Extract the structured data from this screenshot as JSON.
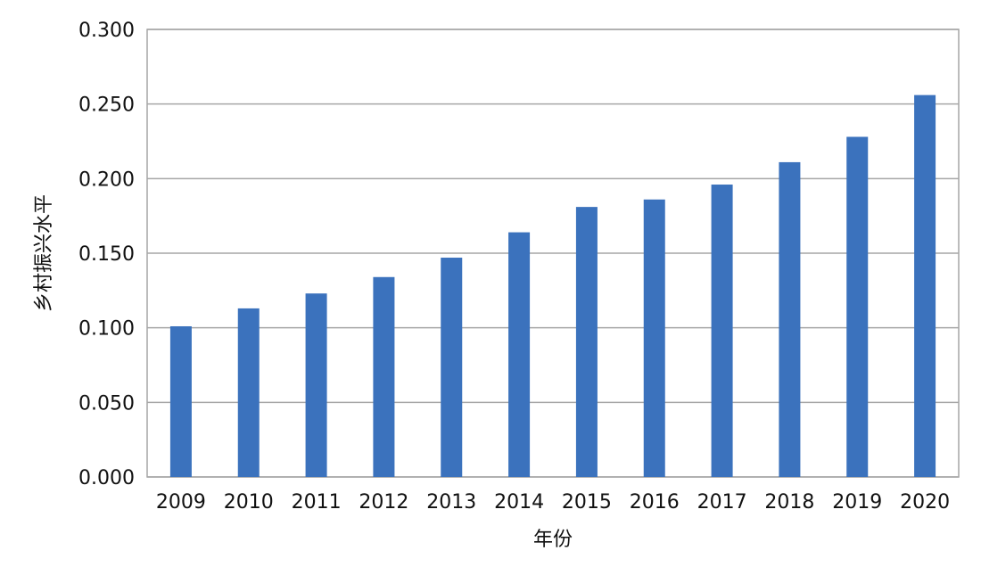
{
  "chart_data": {
    "type": "bar",
    "title": "",
    "xlabel": "年份",
    "ylabel": "乡村振兴水平",
    "categories": [
      "2009",
      "2010",
      "2011",
      "2012",
      "2013",
      "2014",
      "2015",
      "2016",
      "2017",
      "2018",
      "2019",
      "2020"
    ],
    "values": [
      0.101,
      0.113,
      0.123,
      0.134,
      0.147,
      0.164,
      0.181,
      0.186,
      0.196,
      0.211,
      0.228,
      0.256
    ],
    "ylim": [
      0,
      0.3
    ],
    "yticks": [
      "0.000",
      "0.050",
      "0.100",
      "0.150",
      "0.200",
      "0.250",
      "0.300"
    ],
    "grid": true,
    "legend": "none",
    "bar_color": "#3b72bd",
    "grid_color": "#a6a6a6"
  }
}
